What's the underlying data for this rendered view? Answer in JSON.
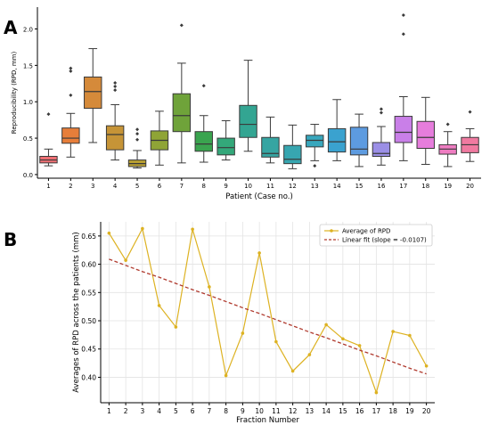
{
  "panel_a_label": "A",
  "panel_b_label": "B",
  "chart_data": [
    {
      "type": "box",
      "xlabel": "Patient (Case no.)",
      "ylabel": "Reproducibility (RPD, mm)",
      "ylim": [
        -0.05,
        2.3
      ],
      "yticks": [
        "0.0",
        "0.5",
        "1.0",
        "1.5",
        "2.0"
      ],
      "yticks_values": [
        0,
        0.5,
        1.0,
        1.5,
        2.0
      ],
      "grid": false,
      "categories": [
        "1",
        "2",
        "3",
        "4",
        "5",
        "6",
        "7",
        "8",
        "9",
        "10",
        "11",
        "12",
        "13",
        "14",
        "15",
        "16",
        "17",
        "18",
        "19",
        "20"
      ],
      "boxes": [
        {
          "whislo": 0.12,
          "q1": 0.16,
          "med": 0.2,
          "q3": 0.25,
          "whishi": 0.35,
          "fliers": [
            0.83
          ],
          "color": "#ee6f73"
        },
        {
          "whislo": 0.24,
          "q1": 0.43,
          "med": 0.5,
          "q3": 0.64,
          "whishi": 0.84,
          "fliers": [
            1.09,
            1.42,
            1.46
          ],
          "color": "#e77e3a"
        },
        {
          "whislo": 0.44,
          "q1": 0.91,
          "med": 1.14,
          "q3": 1.34,
          "whishi": 1.73,
          "fliers": [],
          "color": "#d58a3a"
        },
        {
          "whislo": 0.2,
          "q1": 0.34,
          "med": 0.55,
          "q3": 0.67,
          "whishi": 0.96,
          "fliers": [
            1.16,
            1.21,
            1.26
          ],
          "color": "#c69437"
        },
        {
          "whislo": 0.09,
          "q1": 0.11,
          "med": 0.15,
          "q3": 0.2,
          "whishi": 0.33,
          "fliers": [
            0.48,
            0.56,
            0.62
          ],
          "color": "#b9a032"
        },
        {
          "whislo": 0.13,
          "q1": 0.34,
          "med": 0.47,
          "q3": 0.6,
          "whishi": 0.87,
          "fliers": [],
          "color": "#8fa436"
        },
        {
          "whislo": 0.16,
          "q1": 0.59,
          "med": 0.81,
          "q3": 1.11,
          "whishi": 1.53,
          "fliers": [
            2.05
          ],
          "color": "#6fa33a"
        },
        {
          "whislo": 0.17,
          "q1": 0.32,
          "med": 0.42,
          "q3": 0.59,
          "whishi": 0.81,
          "fliers": [
            1.22
          ],
          "color": "#3aa44f"
        },
        {
          "whislo": 0.2,
          "q1": 0.27,
          "med": 0.37,
          "q3": 0.5,
          "whishi": 0.74,
          "fliers": [],
          "color": "#33a87a"
        },
        {
          "whislo": 0.32,
          "q1": 0.51,
          "med": 0.69,
          "q3": 0.95,
          "whishi": 1.57,
          "fliers": [],
          "color": "#33a592"
        },
        {
          "whislo": 0.16,
          "q1": 0.24,
          "med": 0.29,
          "q3": 0.51,
          "whishi": 0.79,
          "fliers": [],
          "color": "#36a5a2"
        },
        {
          "whislo": 0.08,
          "q1": 0.15,
          "med": 0.21,
          "q3": 0.4,
          "whishi": 0.68,
          "fliers": [],
          "color": "#37a6b0"
        },
        {
          "whislo": 0.19,
          "q1": 0.38,
          "med": 0.47,
          "q3": 0.54,
          "whishi": 0.69,
          "fliers": [
            0.12
          ],
          "color": "#38a7bd"
        },
        {
          "whislo": 0.19,
          "q1": 0.31,
          "med": 0.45,
          "q3": 0.63,
          "whishi": 1.03,
          "fliers": [],
          "color": "#3aa2cf"
        },
        {
          "whislo": 0.11,
          "q1": 0.27,
          "med": 0.35,
          "q3": 0.65,
          "whishi": 0.83,
          "fliers": [],
          "color": "#5d9be0"
        },
        {
          "whislo": 0.13,
          "q1": 0.25,
          "med": 0.29,
          "q3": 0.44,
          "whishi": 0.66,
          "fliers": [
            0.85,
            0.9
          ],
          "color": "#9b8fe6"
        },
        {
          "whislo": 0.19,
          "q1": 0.44,
          "med": 0.58,
          "q3": 0.8,
          "whishi": 1.07,
          "fliers": [
            1.93,
            2.19
          ],
          "color": "#c97fe8"
        },
        {
          "whislo": 0.14,
          "q1": 0.36,
          "med": 0.51,
          "q3": 0.73,
          "whishi": 1.06,
          "fliers": [],
          "color": "#e67ddc"
        },
        {
          "whislo": 0.11,
          "q1": 0.28,
          "med": 0.35,
          "q3": 0.41,
          "whishi": 0.59,
          "fliers": [
            0.69
          ],
          "color": "#ee7cc1"
        },
        {
          "whislo": 0.18,
          "q1": 0.3,
          "med": 0.41,
          "q3": 0.51,
          "whishi": 0.63,
          "fliers": [
            0.86
          ],
          "color": "#f07aa0"
        }
      ]
    },
    {
      "type": "line",
      "xlabel": "Fraction Number",
      "ylabel": "Averages of RPD across the patients (mm)",
      "xlim": [
        0.5,
        20.5
      ],
      "ylim": [
        0.355,
        0.675
      ],
      "yticks": [
        "0.40",
        "0.45",
        "0.50",
        "0.55",
        "0.60",
        "0.65"
      ],
      "yticks_values": [
        0.4,
        0.45,
        0.5,
        0.55,
        0.6,
        0.65
      ],
      "xticks": [
        "1",
        "2",
        "3",
        "4",
        "5",
        "6",
        "7",
        "8",
        "9",
        "10",
        "11",
        "12",
        "13",
        "14",
        "15",
        "16",
        "17",
        "18",
        "19",
        "20"
      ],
      "grid": true,
      "legend_position": "top-right",
      "x": [
        1,
        2,
        3,
        4,
        5,
        6,
        7,
        8,
        9,
        10,
        11,
        12,
        13,
        14,
        15,
        16,
        17,
        18,
        19,
        20
      ],
      "series": [
        {
          "name": "Average of RPD",
          "values": [
            0.655,
            0.607,
            0.663,
            0.527,
            0.489,
            0.662,
            0.56,
            0.403,
            0.478,
            0.62,
            0.463,
            0.411,
            0.44,
            0.493,
            0.468,
            0.456,
            0.373,
            0.481,
            0.474,
            0.42
          ],
          "color": "#ddb222",
          "style": "solid-with-markers"
        },
        {
          "name": "Linear fit (slope = -0.0107)",
          "values": [
            0.609,
            0.598,
            0.587,
            0.577,
            0.566,
            0.555,
            0.545,
            0.534,
            0.523,
            0.513,
            0.502,
            0.491,
            0.48,
            0.47,
            0.459,
            0.448,
            0.438,
            0.427,
            0.416,
            0.406
          ],
          "color": "#b03a2e",
          "style": "dashed"
        }
      ]
    }
  ]
}
